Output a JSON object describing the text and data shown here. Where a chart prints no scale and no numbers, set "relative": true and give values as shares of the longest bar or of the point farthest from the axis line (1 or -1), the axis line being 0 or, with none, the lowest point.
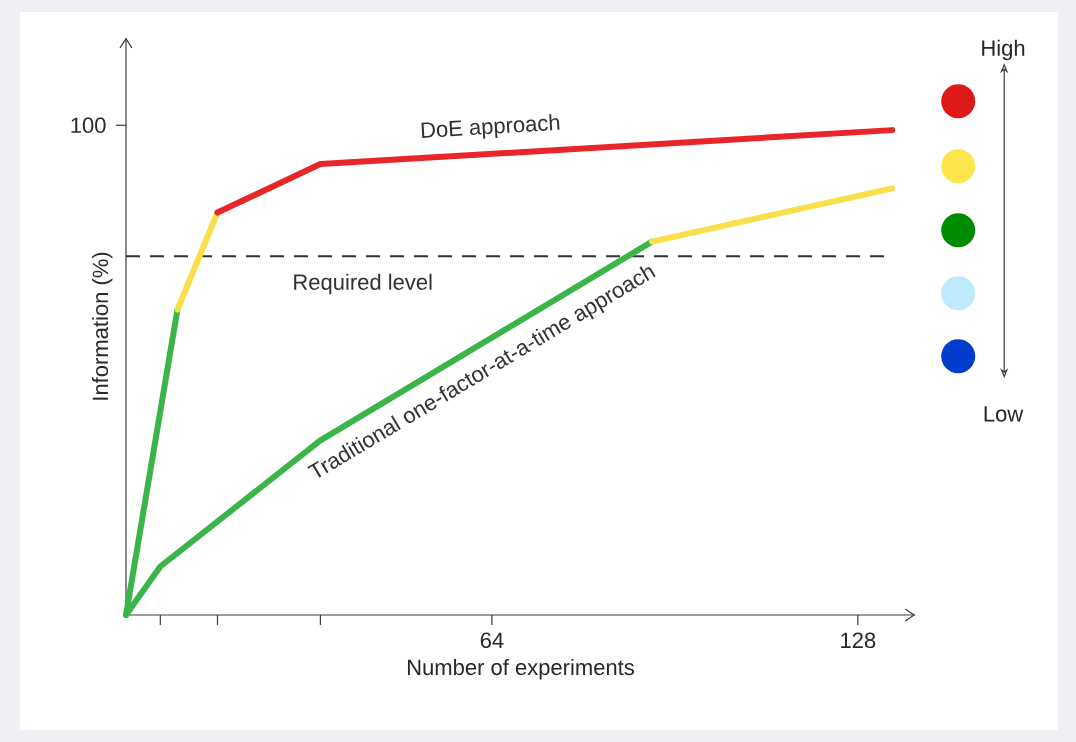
{
  "chart_data": {
    "type": "line",
    "xlabel": "Number of experiments",
    "ylabel": "Information (%)",
    "relative": true,
    "xlim": [
      0,
      138
    ],
    "xticks": [
      {
        "value": 6,
        "label": null
      },
      {
        "value": 16,
        "label": null
      },
      {
        "value": 34,
        "label": null
      },
      64,
      128
    ],
    "line_style": "solid",
    "marker": "none",
    "series": [
      {
        "color": "#3bb54a",
        "x": [
          0,
          9
        ],
        "values": [
          0,
          0.63
        ]
      },
      {
        "color": "#f9df4a",
        "x": [
          9,
          16
        ],
        "values": [
          0.63,
          0.83
        ]
      },
      {
        "name": "DoE approach",
        "color": "#e8262a",
        "x": [
          16,
          34,
          134
        ],
        "values": [
          0.83,
          0.93,
          1
        ]
      },
      {
        "name": "Traditional one-factor-at-a-time approach",
        "color": "#3bb54a",
        "x": [
          0,
          6,
          34,
          92
        ],
        "values": [
          0,
          0.1,
          0.36,
          0.77
        ]
      },
      {
        "color": "#f9df4a",
        "x": [
          92,
          134
        ],
        "values": [
          0.77,
          0.88
        ]
      }
    ],
    "ref_lines": [
      {
        "axis": "y",
        "value": 0.74,
        "label": "Required level",
        "color": "#333333",
        "line_style": "dashed"
      }
    ],
    "annotations": [
      "100",
      "High",
      "Low"
    ]
  }
}
